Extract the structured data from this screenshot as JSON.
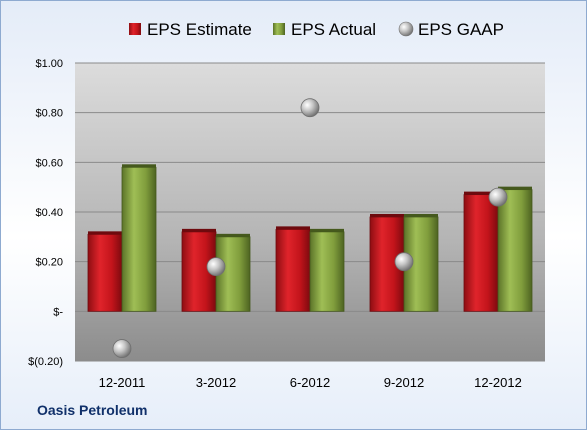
{
  "chart_data": {
    "type": "bar",
    "categories": [
      "12-2011",
      "3-2012",
      "6-2012",
      "9-2012",
      "12-2012"
    ],
    "series": [
      {
        "name": "EPS Estimate",
        "type": "bar",
        "color": "#c0141c",
        "values": [
          0.31,
          0.32,
          0.33,
          0.38,
          0.47
        ]
      },
      {
        "name": "EPS Actual",
        "type": "bar",
        "color": "#7f9b3b",
        "values": [
          0.58,
          0.3,
          0.32,
          0.38,
          0.49
        ]
      },
      {
        "name": "EPS GAAP",
        "type": "scatter",
        "color": "#a6a6a6",
        "values": [
          -0.15,
          0.18,
          0.82,
          0.2,
          0.46
        ]
      }
    ],
    "ylim": [
      -0.2,
      1.0
    ],
    "yticks": [
      -0.2,
      0,
      0.2,
      0.4,
      0.6,
      0.8,
      1.0
    ],
    "ytick_labels": [
      "$(0.20)",
      "$-",
      "$0.20",
      "$0.40",
      "$0.60",
      "$0.80",
      "$1.00"
    ],
    "legend_position": "top",
    "grid": true
  },
  "footer": {
    "company": "Oasis Petroleum"
  }
}
